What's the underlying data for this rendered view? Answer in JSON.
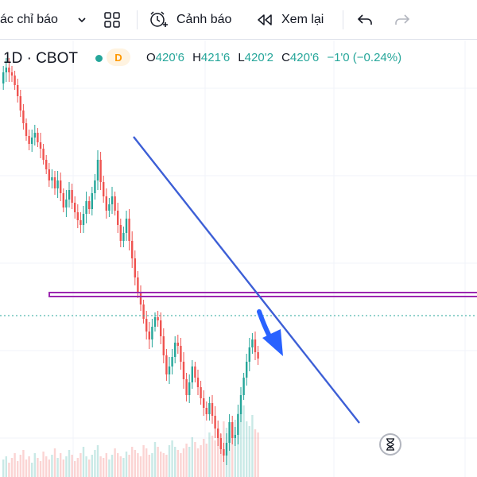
{
  "toolbar": {
    "indicators_label": "ác chỉ báo",
    "alert_label": "Cảnh báo",
    "replay_label": "Xem lại"
  },
  "legend": {
    "symbol": "1D · CBOT",
    "badge": "D",
    "open_key": "O",
    "open": "420'6",
    "high_key": "H",
    "high": "421'6",
    "low_key": "L",
    "low": "420'2",
    "close_key": "C",
    "close": "420'6",
    "change": "−1'0 (−0.24%)"
  },
  "colors": {
    "up": "#26a69a",
    "down": "#ef5350",
    "trendline": "#3d5fd6",
    "horizontal_level": "#9c27b0",
    "price_line": "#26a69a",
    "arrow": "#2962ff",
    "legend_change": "#26a69a",
    "badge": "#ff9800"
  },
  "icons": [
    "chevron-down-icon",
    "layouts-grid-icon",
    "alarm-clock-plus-icon",
    "replay-icon",
    "undo-icon",
    "redo-icon",
    "hourglass-icon"
  ],
  "chart_data": {
    "type": "candlestick",
    "interval": "1D",
    "exchange": "CBOT",
    "candles_open": [
      54,
      40,
      34,
      40,
      44,
      56,
      70,
      88,
      104,
      120,
      130,
      122,
      116,
      128,
      136,
      150,
      162,
      176,
      172,
      186,
      176,
      192,
      210,
      200,
      188,
      204,
      216,
      226,
      232,
      218,
      202,
      212,
      192,
      176,
      150,
      178,
      196,
      214,
      206,
      196,
      214,
      232,
      252,
      242,
      224,
      252,
      274,
      298,
      316,
      332,
      350,
      366,
      376,
      360,
      348,
      352,
      372,
      396,
      420,
      410,
      398,
      380,
      384,
      404,
      426,
      446,
      430,
      410,
      424,
      436,
      450,
      462,
      470,
      456,
      472,
      488,
      500,
      514,
      522,
      506,
      480,
      500,
      496,
      470,
      446,
      424,
      404,
      386,
      376,
      392
    ],
    "candles_close": [
      40,
      34,
      40,
      44,
      56,
      70,
      88,
      104,
      120,
      130,
      122,
      116,
      128,
      136,
      150,
      162,
      176,
      172,
      186,
      176,
      192,
      210,
      200,
      188,
      204,
      216,
      226,
      232,
      218,
      202,
      212,
      192,
      176,
      150,
      178,
      196,
      214,
      206,
      196,
      214,
      232,
      252,
      242,
      224,
      252,
      274,
      298,
      316,
      332,
      350,
      366,
      376,
      360,
      348,
      352,
      372,
      396,
      420,
      410,
      398,
      380,
      384,
      404,
      426,
      446,
      430,
      410,
      424,
      436,
      450,
      462,
      470,
      456,
      472,
      488,
      500,
      514,
      522,
      506,
      480,
      500,
      496,
      470,
      446,
      424,
      404,
      386,
      376,
      392,
      400
    ],
    "candle_wick_range": [
      8,
      12,
      12,
      8,
      6,
      8,
      8,
      8,
      6,
      8,
      10,
      10,
      6,
      12,
      6,
      6,
      8,
      10,
      8,
      12,
      10,
      6,
      12,
      10,
      8,
      8,
      10,
      10,
      10,
      12,
      6,
      8,
      8,
      12,
      10,
      8,
      10,
      8,
      12,
      6,
      10,
      8,
      8,
      10,
      12,
      12,
      10,
      8,
      8,
      6,
      10,
      12,
      10,
      6,
      8,
      10,
      10,
      8,
      12,
      10,
      8,
      10,
      10,
      12,
      8,
      10,
      8,
      6,
      10,
      8,
      10,
      8,
      8,
      10,
      12,
      10,
      6,
      8,
      12,
      10,
      8,
      10,
      12,
      10,
      6,
      10,
      12,
      8,
      10,
      8
    ],
    "volumes": [
      22,
      26,
      18,
      24,
      30,
      20,
      28,
      34,
      22,
      26,
      18,
      30,
      24,
      20,
      32,
      26,
      22,
      28,
      36,
      24,
      30,
      22,
      26,
      34,
      28,
      20,
      24,
      30,
      38,
      26,
      22,
      28,
      34,
      40,
      26,
      24,
      30,
      22,
      28,
      36,
      30,
      26,
      24,
      32,
      28,
      38,
      34,
      30,
      26,
      40,
      36,
      28,
      30,
      44,
      38,
      32,
      30,
      28,
      40,
      46,
      38,
      34,
      30,
      36,
      42,
      38,
      50,
      44,
      36,
      40,
      48,
      42,
      56,
      52,
      46,
      60,
      54,
      70,
      62,
      58,
      66,
      72,
      80,
      86,
      90,
      70,
      64,
      78,
      60,
      56
    ],
    "annotations": {
      "trendline": "descending",
      "horizontal_level": true,
      "arrow": "down"
    }
  }
}
